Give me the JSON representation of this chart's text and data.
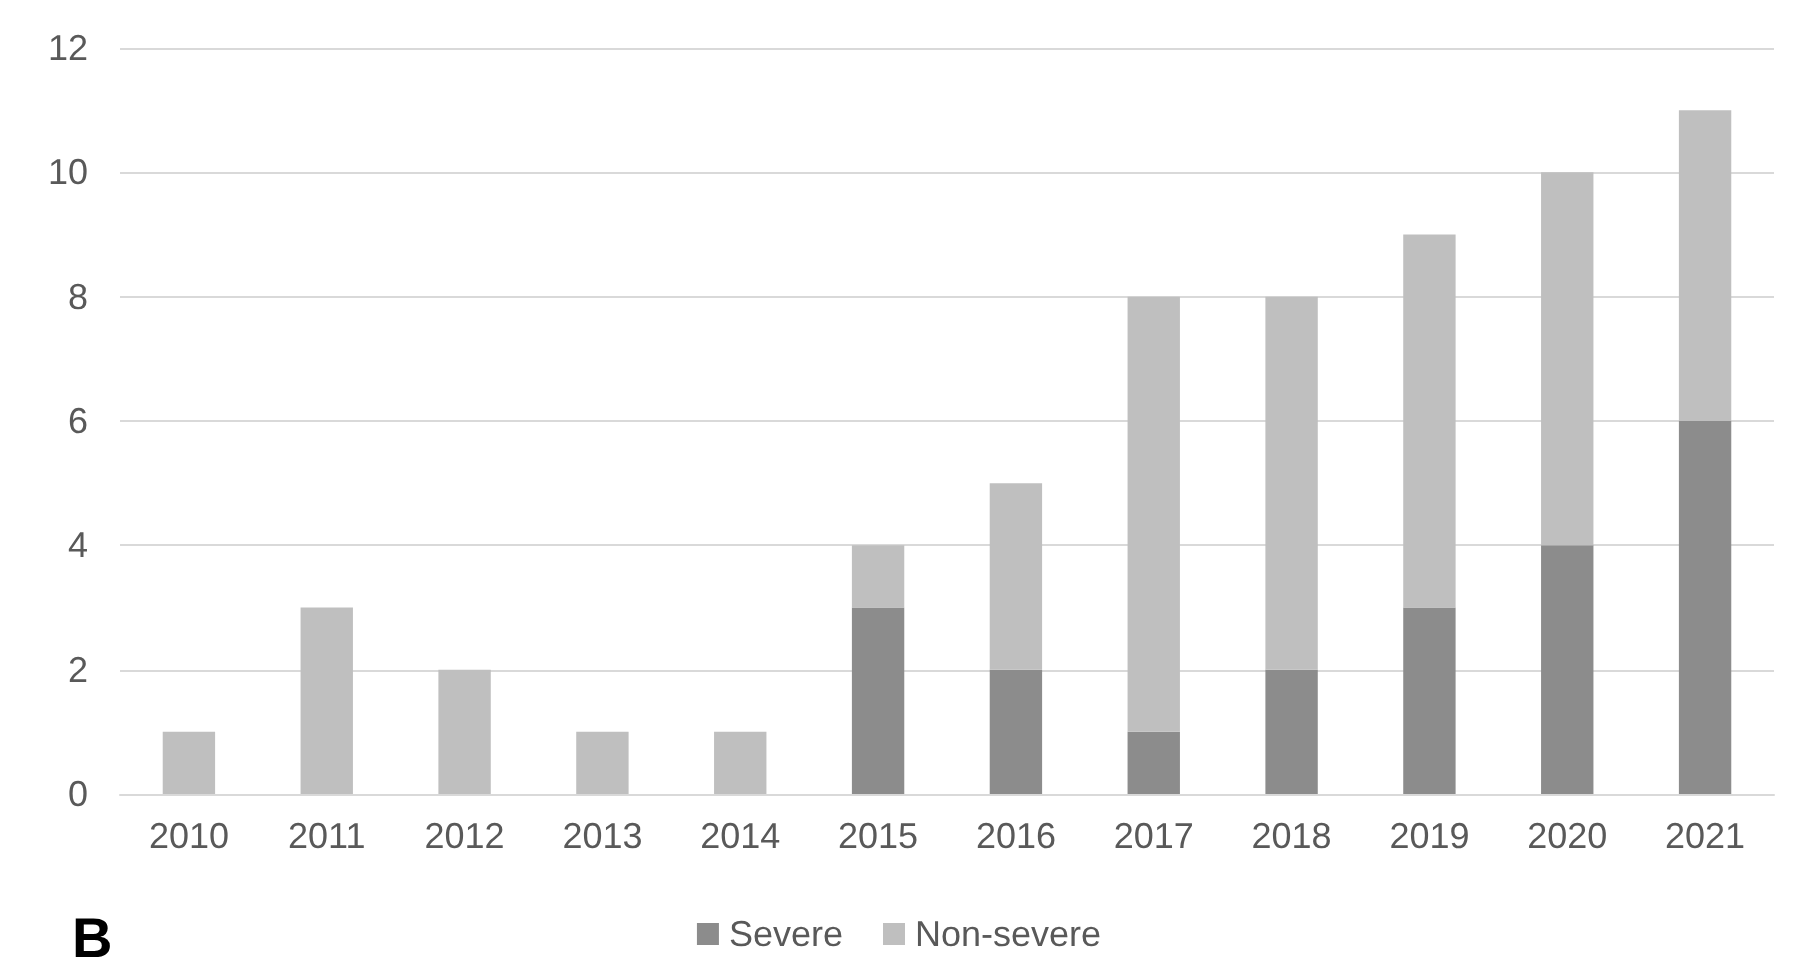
{
  "chart_data": {
    "type": "bar",
    "stacked": true,
    "categories": [
      "2010",
      "2011",
      "2012",
      "2013",
      "2014",
      "2015",
      "2016",
      "2017",
      "2018",
      "2019",
      "2020",
      "2021"
    ],
    "series": [
      {
        "name": "Severe",
        "color": "#8c8c8c",
        "values": [
          0,
          0,
          0,
          0,
          0,
          3,
          2,
          1,
          2,
          3,
          4,
          6
        ]
      },
      {
        "name": "Non-severe",
        "color": "#bfbfbf",
        "values": [
          1,
          3,
          2,
          1,
          1,
          1,
          3,
          7,
          6,
          6,
          6,
          5
        ]
      }
    ],
    "ylim": [
      0,
      12
    ],
    "yticks": [
      0,
      2,
      4,
      6,
      8,
      10,
      12
    ],
    "grid": "y",
    "legend": "bottom",
    "annotations": [
      "B"
    ]
  }
}
